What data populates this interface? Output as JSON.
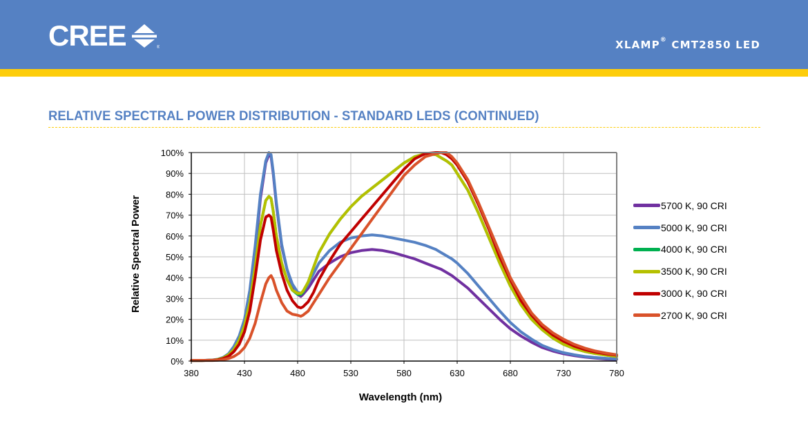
{
  "header": {
    "brand": "CREE",
    "brand_icon": "cree-double-arrow-logo-icon",
    "registered_mark": "®",
    "product_prefix": "XLAMP",
    "product_reg": "®",
    "product_suffix": " CMT2850 LED"
  },
  "section": {
    "title": "RELATIVE SPECTRAL POWER DISTRIBUTION - STANDARD LEDS (CONTINUED)"
  },
  "colors": {
    "header_bg": "#5581c3",
    "stripe": "#fdcd0b",
    "title": "#5581c3"
  },
  "chart_data": {
    "type": "line",
    "title": "",
    "xlabel": "Wavelength (nm)",
    "ylabel": "Relative Spectral Power",
    "xlim": [
      380,
      780
    ],
    "ylim": [
      0,
      100
    ],
    "x_ticks": [
      "380",
      "430",
      "480",
      "530",
      "580",
      "630",
      "680",
      "730",
      "780"
    ],
    "y_ticks": [
      "0%",
      "10%",
      "20%",
      "30%",
      "40%",
      "50%",
      "60%",
      "70%",
      "80%",
      "90%",
      "100%"
    ],
    "grid": true,
    "legend_position": "right",
    "x": [
      380,
      390,
      400,
      405,
      410,
      415,
      420,
      425,
      430,
      435,
      440,
      445,
      450,
      453,
      455,
      457,
      460,
      465,
      470,
      475,
      480,
      483,
      485,
      490,
      495,
      500,
      510,
      520,
      530,
      540,
      550,
      560,
      570,
      580,
      590,
      600,
      610,
      615,
      620,
      625,
      630,
      640,
      650,
      660,
      670,
      680,
      690,
      700,
      710,
      720,
      730,
      740,
      750,
      760,
      770,
      780
    ],
    "series": [
      {
        "name": "5700 K, 90 CRI",
        "color": "#7030a0",
        "values": [
          0.3,
          0.3,
          0.4,
          0.7,
          1.5,
          3,
          6,
          11,
          19,
          32,
          52,
          78,
          95,
          99,
          98,
          90,
          75,
          55,
          44,
          36,
          32,
          31,
          32,
          35,
          39,
          43,
          47,
          50,
          52,
          53,
          53.5,
          53,
          52,
          50.5,
          49,
          47,
          45,
          44,
          42.5,
          41,
          39,
          35,
          30,
          25,
          20,
          15.5,
          12,
          9,
          6.5,
          4.8,
          3.5,
          2.6,
          1.9,
          1.4,
          1.0,
          0.8
        ]
      },
      {
        "name": "5000 K, 90 CRI",
        "color": "#5581c3",
        "values": [
          0.3,
          0.3,
          0.5,
          0.9,
          1.8,
          3.5,
          7,
          12,
          20,
          34,
          55,
          80,
          96,
          100,
          99,
          91,
          76,
          56,
          44,
          37,
          33,
          32.5,
          33,
          37,
          42,
          47,
          53,
          57,
          59,
          60,
          60.5,
          60,
          59,
          58,
          57,
          55.5,
          53.5,
          52,
          50.5,
          49,
          47,
          42,
          36,
          30,
          24,
          18.5,
          14,
          10.5,
          7.5,
          5.5,
          4,
          3,
          2.2,
          1.7,
          1.3,
          1.0
        ]
      },
      {
        "name": "4000 K, 90 CRI",
        "color": "#00b050",
        "values": [
          0.3,
          0.3,
          0.4,
          0.8,
          1.5,
          3,
          5.5,
          10,
          17,
          28,
          45,
          65,
          77,
          79,
          78,
          72,
          60,
          47,
          39,
          34,
          32,
          32,
          33,
          38,
          45,
          52,
          61,
          68,
          74,
          79,
          83,
          87,
          91,
          95,
          98,
          99.5,
          99,
          97.5,
          96,
          94,
          90,
          82,
          71,
          59,
          47,
          36,
          27,
          20,
          15,
          11,
          8,
          6,
          4.6,
          3.6,
          2.8,
          2.2
        ]
      },
      {
        "name": "3500 K, 90 CRI",
        "color": "#b5c000",
        "values": [
          0.3,
          0.3,
          0.4,
          0.8,
          1.5,
          3,
          5.5,
          10,
          17,
          28,
          45,
          65,
          77,
          79,
          78,
          72,
          60,
          47,
          39,
          34,
          32.5,
          32.5,
          33.5,
          38,
          45,
          52,
          61,
          68,
          74,
          79,
          83,
          87,
          91,
          95,
          98,
          99.5,
          99,
          97.5,
          96,
          94,
          90,
          82,
          71,
          59,
          47,
          36,
          27,
          20,
          15,
          11,
          8,
          6,
          4.6,
          3.6,
          2.8,
          2.2
        ]
      },
      {
        "name": "3000 K, 90 CRI",
        "color": "#c00000",
        "values": [
          0.3,
          0.3,
          0.4,
          0.6,
          1.2,
          2.3,
          4.5,
          8,
          14,
          24,
          40,
          58,
          69,
          70,
          69,
          63,
          53,
          42,
          34,
          29,
          26,
          25.5,
          26,
          28.5,
          33,
          39,
          48,
          56,
          62,
          68,
          74,
          80,
          86,
          92,
          97,
          99.5,
          100,
          100,
          99,
          97,
          94,
          86,
          75,
          63,
          50,
          39,
          29,
          22,
          16.5,
          12.5,
          9.5,
          7.2,
          5.5,
          4.3,
          3.4,
          2.8
        ]
      },
      {
        "name": "2700 K, 90 CRI",
        "color": "#d9522a",
        "values": [
          0.3,
          0.3,
          0.3,
          0.4,
          0.7,
          1.2,
          2.2,
          3.8,
          6.5,
          11,
          18,
          28,
          37,
          40,
          41,
          39,
          34,
          28,
          24,
          22.5,
          22,
          21.5,
          22,
          24,
          28,
          32,
          40,
          47,
          54,
          61,
          68,
          75,
          82,
          89,
          94,
          98,
          99.5,
          100,
          100,
          98,
          95,
          87,
          76,
          64,
          52,
          40,
          31,
          23,
          17.5,
          13.5,
          10.5,
          8,
          6.2,
          4.8,
          3.8,
          3.0
        ]
      }
    ]
  }
}
